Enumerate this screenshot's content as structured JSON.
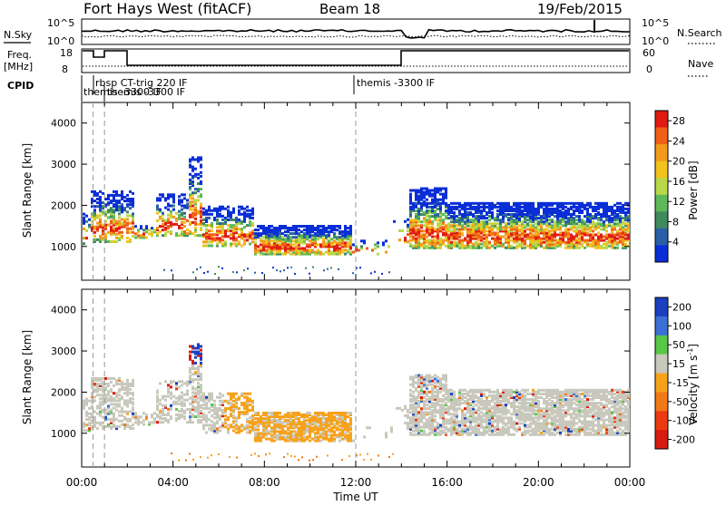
{
  "header": {
    "station": "Fort Hays West (fitACF)",
    "beam": "Beam 18",
    "date": "19/Feb/2015"
  },
  "side_labels": {
    "nsky": "N.Sky",
    "nsearch": "N.Search",
    "freq_line1": "Freq.",
    "freq_line2": "[MHz]",
    "nave": "Nave",
    "cpid": "CPID"
  },
  "noise_panel": {
    "left_ticks": [
      "10^5",
      "10^0"
    ],
    "right_ticks": [
      "10^5",
      "10^0"
    ]
  },
  "freq_panel": {
    "left_ticks": [
      "18",
      "8"
    ],
    "right_ticks": [
      "60",
      "0"
    ]
  },
  "cpid_labels": [
    {
      "text": "rbsp CT-trig 220 IF",
      "time_h": 0.55
    },
    {
      "text": "themis -3300 IF",
      "time_h": 0.2
    },
    {
      "text": "themis -3300 IF",
      "time_h": 1.0
    },
    {
      "text": "themis -3300 IF",
      "time_h": 12.0
    }
  ],
  "colors": {
    "power_scale": [
      "#0a2ed6",
      "#2a5fa8",
      "#3f8a5c",
      "#5fb85a",
      "#b8d84a",
      "#f2c21d",
      "#f39a1a",
      "#ef5f16",
      "#e01c12"
    ],
    "velocity_scale": [
      "#1c3fbf",
      "#3b6fd6",
      "#58c646",
      "#c8c8bc",
      "#f7a21b",
      "#f07a17",
      "#eb3b12",
      "#d81c10"
    ]
  },
  "chart_data": [
    {
      "type": "heatmap",
      "name": "power",
      "xlabel": "Time UT",
      "ylabel": "Slant Range [km]",
      "x_ticks": [
        "00:00",
        "04:00",
        "08:00",
        "12:00",
        "16:00",
        "20:00",
        "00:00"
      ],
      "x_range_hours": [
        0,
        24
      ],
      "y_ticks": [
        1000,
        2000,
        3000,
        4000
      ],
      "ylim": [
        180,
        4500
      ],
      "colorbar_label": "Power [dB]",
      "colorbar_ticks": [
        4,
        8,
        12,
        16,
        20,
        24,
        28
      ],
      "colorbar_range": [
        0,
        30
      ],
      "dashed_markers_h": [
        0.5,
        1.0,
        12.0
      ]
    },
    {
      "type": "heatmap",
      "name": "velocity",
      "xlabel": "Time UT",
      "ylabel": "Slant Range [km]",
      "x_ticks": [
        "00:00",
        "04:00",
        "08:00",
        "12:00",
        "16:00",
        "20:00",
        "00:00"
      ],
      "x_range_hours": [
        0,
        24
      ],
      "y_ticks": [
        1000,
        2000,
        3000,
        4000
      ],
      "ylim": [
        180,
        4500
      ],
      "colorbar_label": "Velocity [m s",
      "colorbar_unit_exp": "-1",
      "colorbar_label_end": "]",
      "colorbar_ticks": [
        "200",
        "100",
        "50",
        "15",
        "-15",
        "-50",
        "-100",
        "-200"
      ],
      "dashed_markers_h": [
        0.5,
        1.0,
        12.0
      ]
    }
  ]
}
